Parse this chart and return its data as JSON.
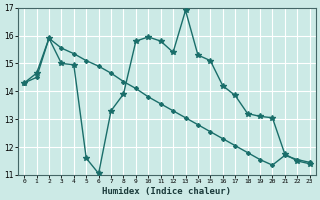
{
  "title": "",
  "xlabel": "Humidex (Indice chaleur)",
  "background_color": "#cceae6",
  "grid_color": "#ffffff",
  "line_color": "#1a6e6a",
  "xlim": [
    -0.5,
    23.5
  ],
  "ylim": [
    11,
    17
  ],
  "yticks": [
    11,
    12,
    13,
    14,
    15,
    16,
    17
  ],
  "xticks": [
    0,
    1,
    2,
    3,
    4,
    5,
    6,
    7,
    8,
    9,
    10,
    11,
    12,
    13,
    14,
    15,
    16,
    17,
    18,
    19,
    20,
    21,
    22,
    23
  ],
  "line1_x": [
    0,
    1,
    2,
    3,
    4,
    5,
    6,
    7,
    8,
    9,
    10,
    11,
    12,
    13,
    14,
    15,
    16,
    17,
    18,
    19,
    20,
    21,
    22,
    23
  ],
  "line1_y": [
    14.3,
    14.65,
    15.9,
    15.0,
    14.95,
    11.6,
    11.05,
    13.3,
    13.9,
    15.8,
    15.95,
    15.8,
    15.4,
    16.9,
    15.3,
    15.1,
    14.2,
    13.85,
    13.2,
    13.1,
    13.05,
    11.75,
    11.5,
    11.4
  ],
  "line2_x": [
    0,
    1,
    2,
    3,
    4,
    5,
    6,
    7,
    8,
    9,
    10,
    11,
    12,
    13,
    14,
    15,
    16,
    17,
    18,
    19,
    20,
    21,
    22,
    23
  ],
  "line2_y": [
    14.3,
    14.5,
    15.9,
    15.55,
    15.35,
    15.1,
    14.9,
    14.65,
    14.35,
    14.1,
    13.8,
    13.55,
    13.3,
    13.05,
    12.8,
    12.55,
    12.3,
    12.05,
    11.8,
    11.55,
    11.35,
    11.7,
    11.55,
    11.45
  ]
}
